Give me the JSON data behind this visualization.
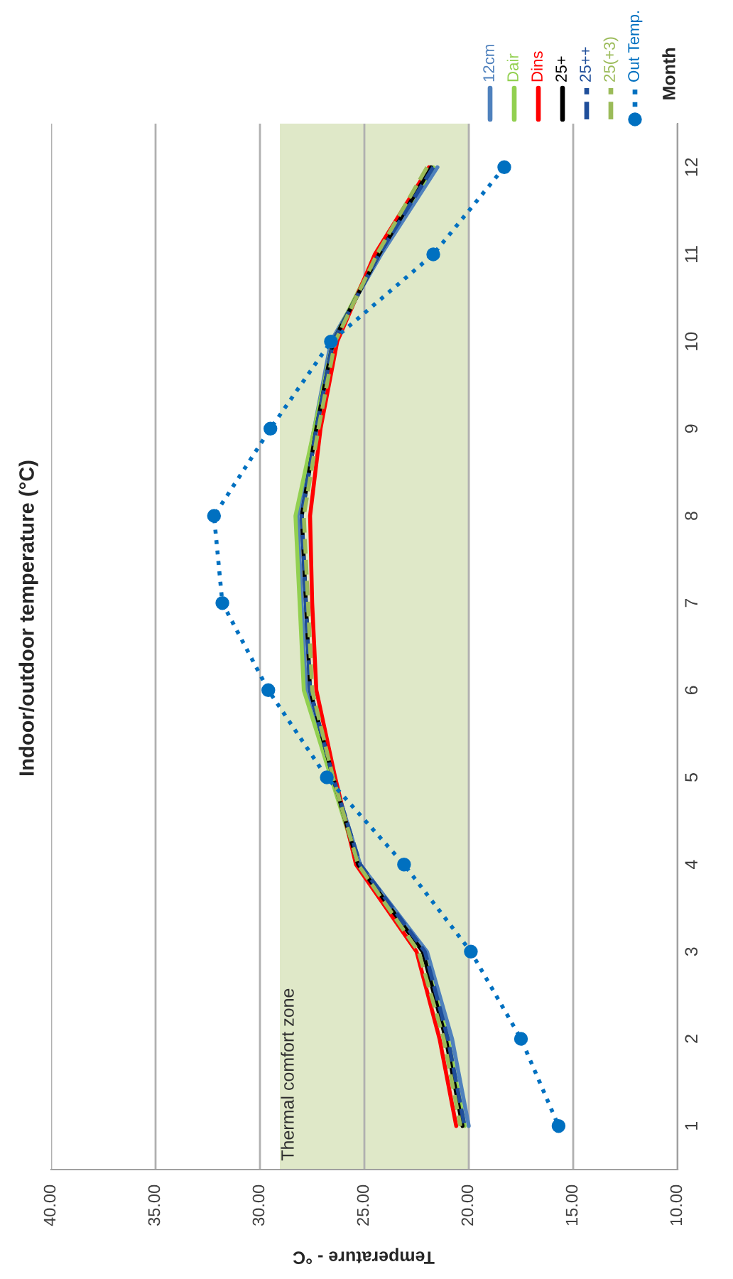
{
  "chart_data": {
    "type": "line",
    "orientation": "horizontal",
    "title": "Indoor/outdoor temperature (°C)",
    "xlabel": "Temperature - °C",
    "ylabel": "Month",
    "categories": [
      "12",
      "11",
      "10",
      "9",
      "8",
      "7",
      "6",
      "5",
      "4",
      "3",
      "2",
      "1"
    ],
    "series": [
      {
        "name": "12cm",
        "color": "#4f81bd",
        "line_style": "solid",
        "marker": "none",
        "values": [
          21.5,
          24.2,
          26.6,
          27.4,
          28.2,
          28.0,
          27.8,
          26.5,
          25.2,
          22.0,
          20.8,
          20.0
        ]
      },
      {
        "name": "Dair",
        "color": "#92d050",
        "line_style": "solid",
        "marker": "none",
        "values": [
          21.7,
          24.4,
          26.5,
          27.4,
          28.3,
          28.1,
          27.9,
          26.6,
          25.3,
          22.2,
          21.0,
          20.2
        ]
      },
      {
        "name": "Dins",
        "color": "#ff0000",
        "line_style": "solid",
        "marker": "none",
        "values": [
          21.9,
          24.5,
          26.3,
          27.1,
          27.6,
          27.5,
          27.3,
          26.4,
          25.4,
          22.5,
          21.4,
          20.6
        ]
      },
      {
        "name": "25+",
        "color": "#000000",
        "line_style": "solid",
        "marker": "none",
        "values": [
          21.8,
          24.3,
          26.5,
          27.3,
          28.0,
          27.8,
          27.6,
          26.5,
          25.3,
          22.2,
          21.1,
          20.3
        ]
      },
      {
        "name": "25++",
        "color": "#1f4e9a",
        "line_style": "dashed",
        "marker": "none",
        "values": [
          21.7,
          24.3,
          26.5,
          27.3,
          28.0,
          27.8,
          27.6,
          26.5,
          25.2,
          22.1,
          21.0,
          20.2
        ]
      },
      {
        "name": "25(+3)",
        "color": "#9bbb59",
        "line_style": "dashed",
        "marker": "none",
        "values": [
          22.0,
          24.4,
          26.4,
          27.2,
          27.9,
          27.7,
          27.5,
          26.5,
          25.3,
          22.4,
          21.2,
          20.4
        ]
      },
      {
        "name": "Out Temp.",
        "color": "#0070c0",
        "line_style": "dotted",
        "marker": "circle",
        "values": [
          18.3,
          21.7,
          26.6,
          29.5,
          32.2,
          31.8,
          29.6,
          26.8,
          23.1,
          19.9,
          17.5,
          15.7
        ]
      }
    ],
    "xlim": [
      40,
      10
    ],
    "xticks": [
      {
        "value": 40,
        "label": "40.00"
      },
      {
        "value": 35,
        "label": "35.00"
      },
      {
        "value": 30,
        "label": "30.00"
      },
      {
        "value": 25,
        "label": "25.00"
      },
      {
        "value": 20,
        "label": "20.00"
      },
      {
        "value": 15,
        "label": "15.00"
      },
      {
        "value": 10,
        "label": "10.00"
      }
    ],
    "bands": [
      {
        "axis": "x",
        "from": 20,
        "to": 29,
        "label": "Thermal comfort zone",
        "color": "#dfe8c8"
      }
    ],
    "grid": "x",
    "legend": "top"
  }
}
